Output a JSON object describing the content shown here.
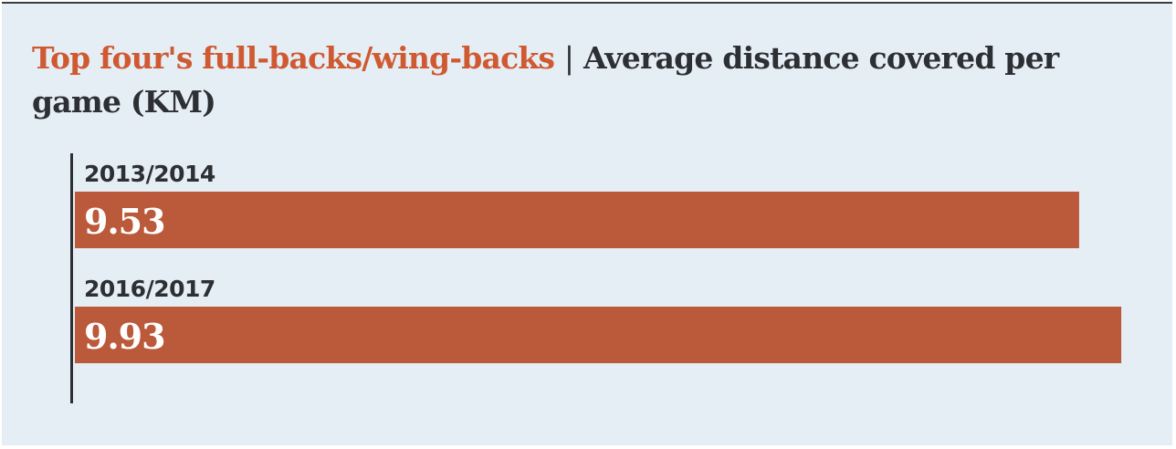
{
  "chart_data": {
    "type": "bar",
    "orientation": "horizontal",
    "title_highlight": "Top four's full-backs/wing-backs",
    "title_separator": "|",
    "title": "Average distance covered per game (KM)",
    "categories": [
      "2013/2014",
      "2016/2017"
    ],
    "values": [
      9.53,
      9.93
    ],
    "value_labels": [
      "9.53",
      "9.93"
    ],
    "xlim": [
      0,
      10.12
    ],
    "bar_color": "#bb5a3a",
    "grid": false,
    "legend": "none"
  },
  "colors": {
    "background": "#e6eef5",
    "accent": "#cf5a32",
    "text": "#2c2f33",
    "bar": "#bb5a3a"
  }
}
